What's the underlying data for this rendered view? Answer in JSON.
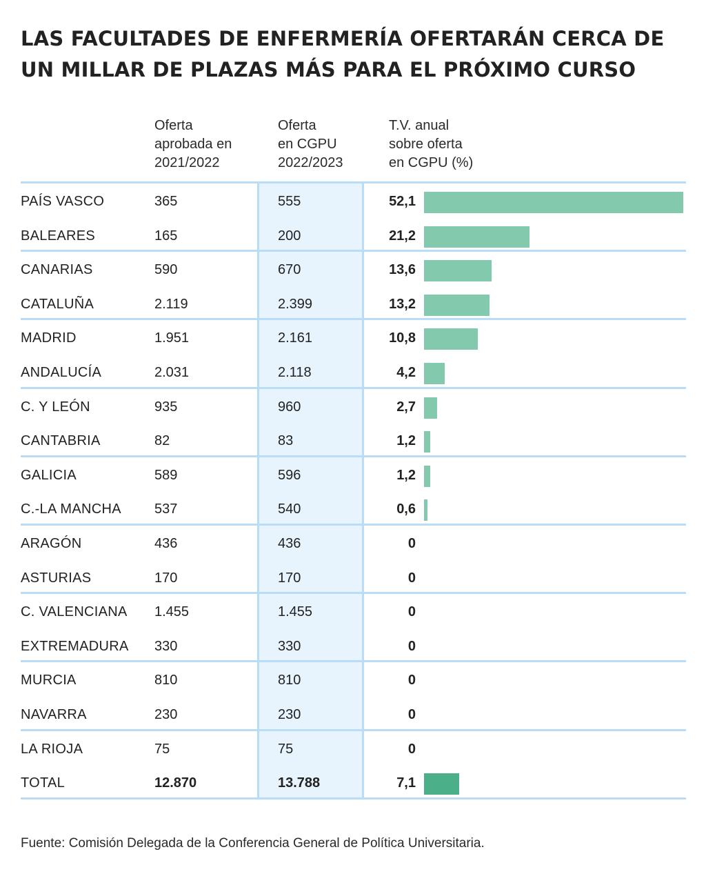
{
  "title": "LAS FACULTADES DE ENFERMERÍA OFERTARÁN CERCA DE UN MILLAR DE PLAZAS MÁS PARA EL PRÓXIMO CURSO",
  "source": "Fuente: Comisión Delegada de la Conferencia General de Política Universitaria.",
  "colors": {
    "bar": "#83c9ae",
    "bar_total": "#4bb08a",
    "band": "#e8f4fd",
    "rule": "#b9dcf7"
  },
  "chart_data": {
    "type": "table",
    "columns": [
      "Oferta\naprobada en\n2021/2022",
      "Oferta\nen CGPU\n2022/2023",
      "T.V. anual\nsobre oferta\nen CGPU (%)"
    ],
    "bar_max": 52.1,
    "rows": [
      {
        "region": "PAÍS VASCO",
        "oferta_2021_2022": "365",
        "oferta_2022_2023": "555",
        "tv_label": "52,1",
        "tv": 52.1
      },
      {
        "region": "BALEARES",
        "oferta_2021_2022": "165",
        "oferta_2022_2023": "200",
        "tv_label": "21,2",
        "tv": 21.2
      },
      {
        "region": "CANARIAS",
        "oferta_2021_2022": "590",
        "oferta_2022_2023": "670",
        "tv_label": "13,6",
        "tv": 13.6
      },
      {
        "region": "CATALUÑA",
        "oferta_2021_2022": "2.119",
        "oferta_2022_2023": "2.399",
        "tv_label": "13,2",
        "tv": 13.2
      },
      {
        "region": "MADRID",
        "oferta_2021_2022": "1.951",
        "oferta_2022_2023": "2.161",
        "tv_label": "10,8",
        "tv": 10.8
      },
      {
        "region": "ANDALUCÍA",
        "oferta_2021_2022": "2.031",
        "oferta_2022_2023": "2.118",
        "tv_label": "4,2",
        "tv": 4.2
      },
      {
        "region": "C. Y LEÓN",
        "oferta_2021_2022": "935",
        "oferta_2022_2023": "960",
        "tv_label": "2,7",
        "tv": 2.7
      },
      {
        "region": "CANTABRIA",
        "oferta_2021_2022": "82",
        "oferta_2022_2023": "83",
        "tv_label": "1,2",
        "tv": 1.2
      },
      {
        "region": "GALICIA",
        "oferta_2021_2022": "589",
        "oferta_2022_2023": "596",
        "tv_label": "1,2",
        "tv": 1.2
      },
      {
        "region": "C.-LA MANCHA",
        "oferta_2021_2022": "537",
        "oferta_2022_2023": "540",
        "tv_label": "0,6",
        "tv": 0.6
      },
      {
        "region": "ARAGÓN",
        "oferta_2021_2022": "436",
        "oferta_2022_2023": "436",
        "tv_label": "0",
        "tv": 0
      },
      {
        "region": "ASTURIAS",
        "oferta_2021_2022": "170",
        "oferta_2022_2023": "170",
        "tv_label": "0",
        "tv": 0
      },
      {
        "region": "C. VALENCIANA",
        "oferta_2021_2022": "1.455",
        "oferta_2022_2023": "1.455",
        "tv_label": "0",
        "tv": 0
      },
      {
        "region": "EXTREMADURA",
        "oferta_2021_2022": "330",
        "oferta_2022_2023": "330",
        "tv_label": "0",
        "tv": 0
      },
      {
        "region": "MURCIA",
        "oferta_2021_2022": "810",
        "oferta_2022_2023": "810",
        "tv_label": "0",
        "tv": 0
      },
      {
        "region": "NAVARRA",
        "oferta_2021_2022": "230",
        "oferta_2022_2023": "230",
        "tv_label": "0",
        "tv": 0
      },
      {
        "region": "LA RIOJA",
        "oferta_2021_2022": "75",
        "oferta_2022_2023": "75",
        "tv_label": "0",
        "tv": 0
      },
      {
        "region": "TOTAL",
        "oferta_2021_2022": "12.870",
        "oferta_2022_2023": "13.788",
        "tv_label": "7,1",
        "tv": 7.1,
        "total": true
      }
    ]
  }
}
